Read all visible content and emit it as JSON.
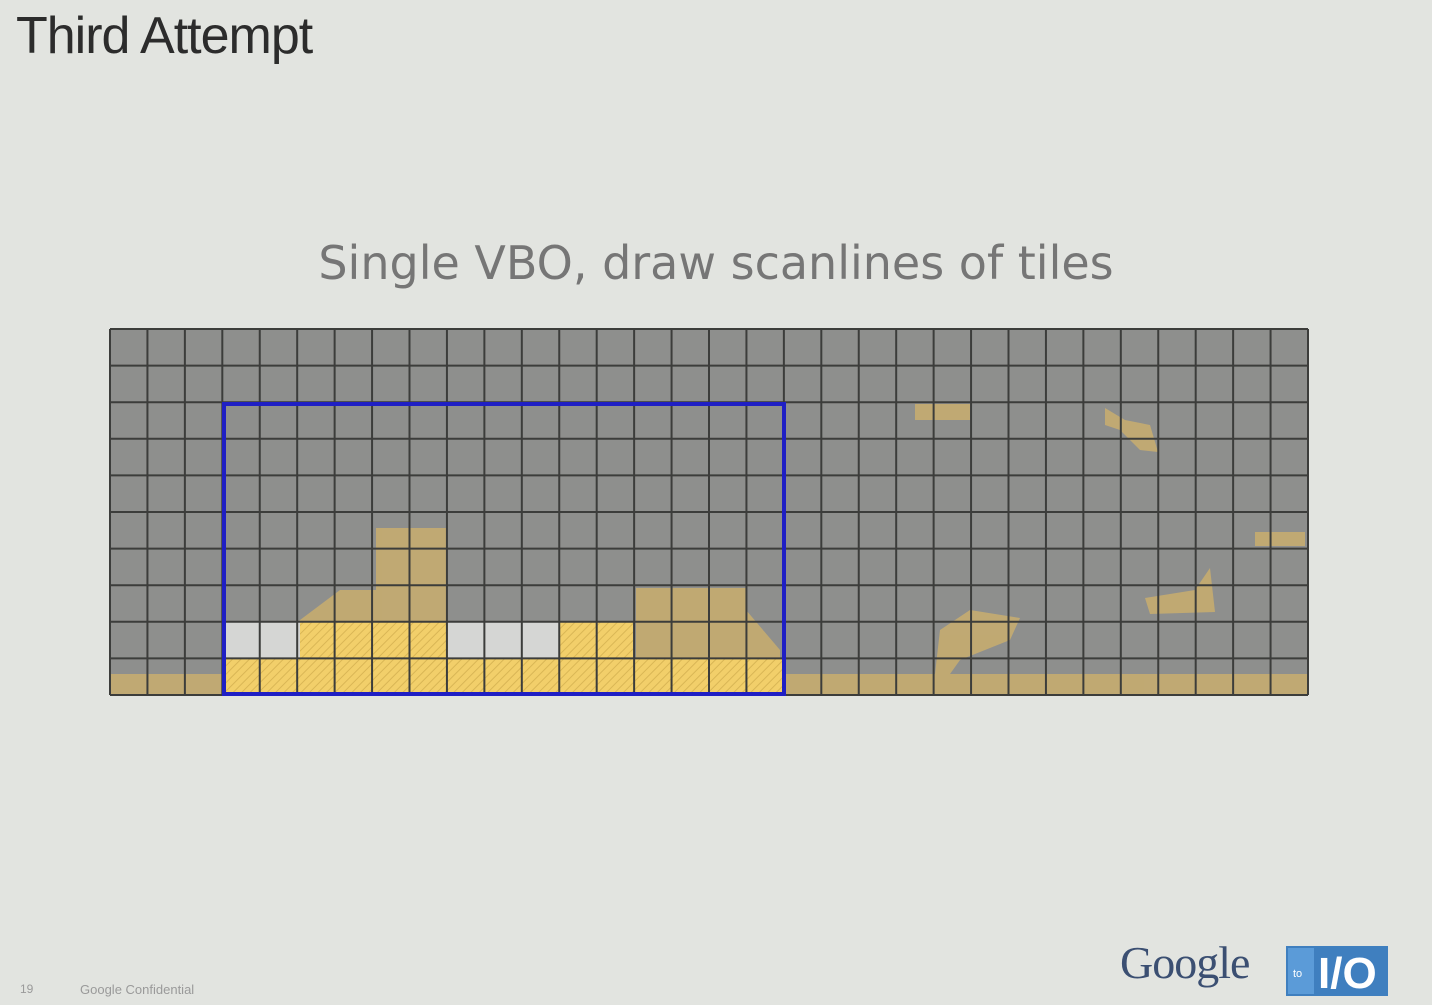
{
  "slide": {
    "title": "Third Attempt",
    "subtitle": "Single VBO, draw scanlines of tiles",
    "footer": {
      "page_number": "19",
      "confidential": "Google Confidential"
    },
    "logo": {
      "google_text": "Google",
      "io_small": "to",
      "io_text": "I/O"
    }
  },
  "diagram": {
    "columns": 32,
    "rows": 10,
    "colors": {
      "background": "#8e8f8d",
      "grid_line": "#3c3d3b",
      "terrain": "#c9ae6e",
      "selection_border": "#1f1fc4",
      "highlight_tile_yellow": "#f2cf6a",
      "highlight_tile_white": "#d5d6d4"
    },
    "selection": {
      "col_start": 3,
      "col_end": 18,
      "row_start": 2,
      "row_end": 10
    }
  }
}
